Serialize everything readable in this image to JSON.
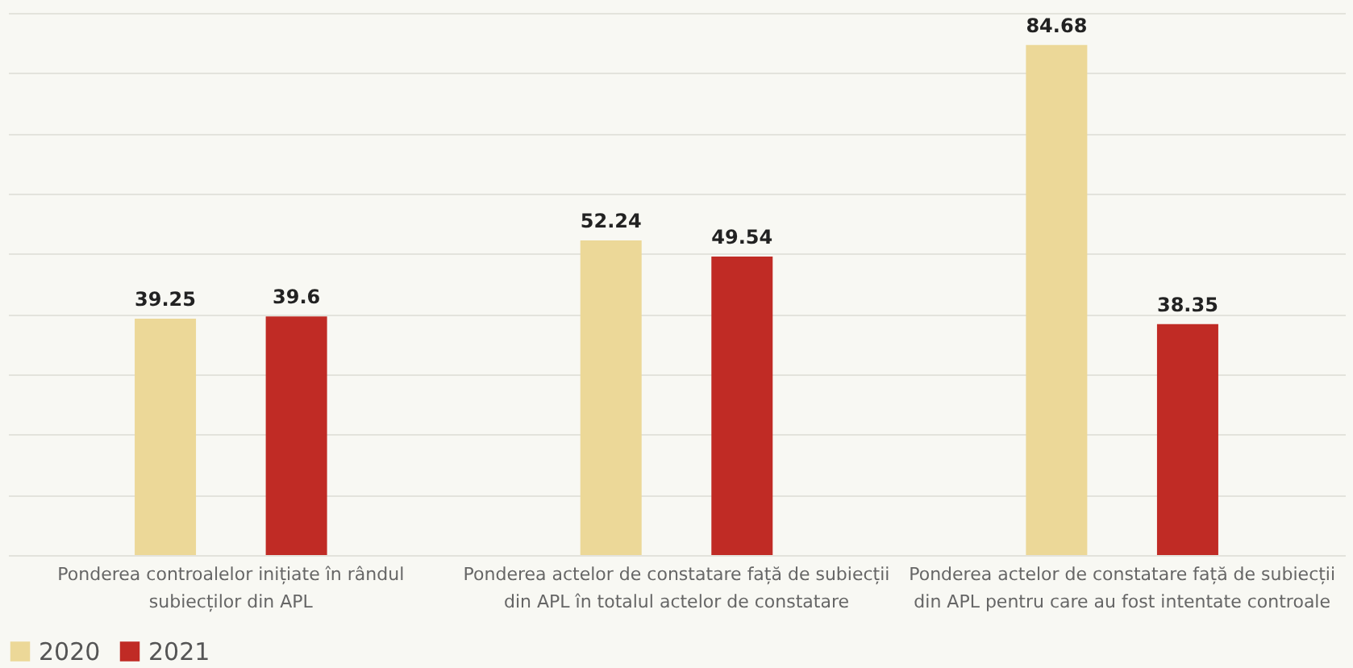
{
  "chart_data": {
    "type": "bar",
    "categories": [
      "Ponderea controalelor inițiate în rândul\nsubiecților din APL",
      "Ponderea actelor de constatare față de subiecții\ndin APL în totalul actelor de constatare",
      "Ponderea actelor de constatare față de subiecții\ndin APL pentru care au fost intentate controale"
    ],
    "series": [
      {
        "name": "2020",
        "color": "#ecd898",
        "values": [
          39.25,
          52.24,
          84.68
        ]
      },
      {
        "name": "2021",
        "color": "#c02b25",
        "values": [
          39.6,
          49.54,
          38.35
        ]
      }
    ],
    "tick_labels": "x",
    "grid": "y",
    "data_labels": true,
    "legend": "bottom"
  }
}
